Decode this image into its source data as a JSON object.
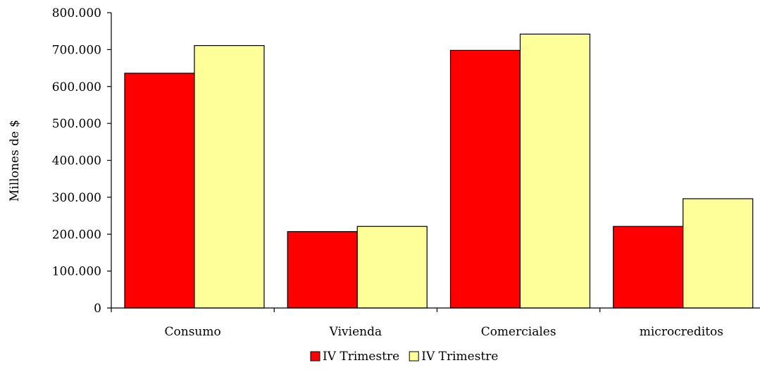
{
  "chart_data": {
    "type": "bar",
    "title": "",
    "xlabel": "",
    "ylabel": "Millones de $",
    "categories": [
      "Consumo",
      "Vivienda",
      "Comerciales",
      "microcreditos"
    ],
    "series": [
      {
        "name": "IV Trimestre",
        "values": [
          636000,
          207000,
          698000,
          221000
        ],
        "color": "#ff0000"
      },
      {
        "name": "IV Trimestre",
        "values": [
          711000,
          221000,
          742000,
          296000
        ],
        "color": "#ffff99"
      }
    ],
    "ylim": [
      0,
      800000
    ],
    "y_ticks": [
      0,
      100000,
      200000,
      300000,
      400000,
      500000,
      600000,
      700000,
      800000
    ],
    "y_tick_labels": [
      "0",
      "100.000",
      "200.000",
      "300.000",
      "400.000",
      "500.000",
      "600.000",
      "700.000",
      "800.000"
    ],
    "grid": false,
    "legend_position": "bottom"
  }
}
